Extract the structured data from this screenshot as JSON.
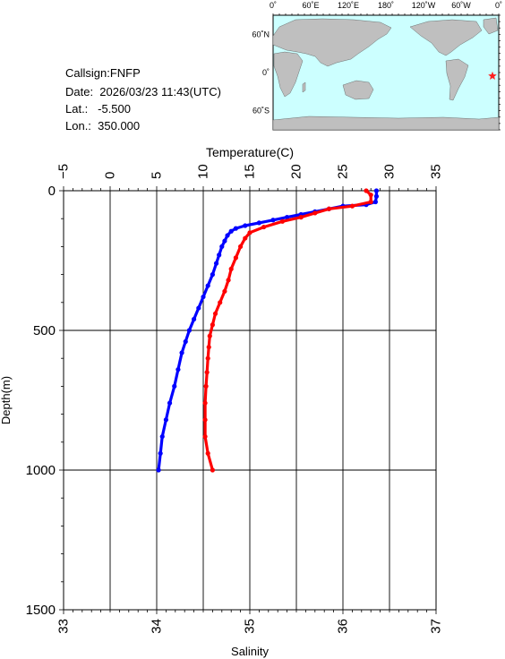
{
  "header": {
    "callsign": "Callsign:FNFP",
    "date": "Date:  2026/03/23 11:43(UTC)",
    "lat": "Lat.:   -5.500",
    "lon": "Lon.:  350.000"
  },
  "map": {
    "lon_labels": [
      "0˚",
      "60˚E",
      "120˚E",
      "180˚",
      "120˚W",
      "60˚W",
      "0˚"
    ],
    "lat_labels": [
      "60˚N",
      "0˚",
      "60˚S"
    ],
    "ocean_color": "#ccffff",
    "land_color": "#bfbfbf",
    "marker_color": "#ff2020",
    "marker_symbol": "star",
    "marker_lat": -5.5,
    "marker_lon": 350.0
  },
  "chart_data": {
    "type": "line",
    "x_top": {
      "label": "Temperature(C)",
      "range": [
        -5,
        35
      ],
      "ticks": [
        "-5",
        "0",
        "5",
        "10",
        "15",
        "20",
        "25",
        "30",
        "35"
      ]
    },
    "x_bottom": {
      "label": "Salinity",
      "range": [
        33,
        37
      ],
      "ticks": [
        "33",
        "34",
        "35",
        "36",
        "37"
      ]
    },
    "y": {
      "label": "Depth(m)",
      "range": [
        0,
        1500
      ],
      "inverted": true,
      "ticks": [
        "0",
        "500",
        "1000",
        "1500"
      ]
    },
    "grid": true,
    "series": [
      {
        "color": "#0000ff",
        "axis": "temperature",
        "points": [
          [
            28.6,
            0
          ],
          [
            28.6,
            20
          ],
          [
            28.5,
            40
          ],
          [
            27.5,
            50
          ],
          [
            25.0,
            55
          ],
          [
            23.5,
            65
          ],
          [
            22.0,
            75
          ],
          [
            20.5,
            85
          ],
          [
            19.0,
            95
          ],
          [
            17.5,
            105
          ],
          [
            16.0,
            115
          ],
          [
            14.5,
            125
          ],
          [
            13.5,
            135
          ],
          [
            13.0,
            145
          ],
          [
            12.6,
            160
          ],
          [
            12.3,
            180
          ],
          [
            12.0,
            200
          ],
          [
            11.7,
            230
          ],
          [
            11.4,
            260
          ],
          [
            11.0,
            300
          ],
          [
            10.5,
            340
          ],
          [
            10.0,
            380
          ],
          [
            9.5,
            420
          ],
          [
            9.0,
            460
          ],
          [
            8.5,
            500
          ],
          [
            8.1,
            540
          ],
          [
            7.7,
            580
          ],
          [
            7.3,
            640
          ],
          [
            6.9,
            700
          ],
          [
            6.4,
            760
          ],
          [
            6.0,
            820
          ],
          [
            5.6,
            880
          ],
          [
            5.4,
            940
          ],
          [
            5.2,
            1000
          ]
        ]
      },
      {
        "color": "#ff0000",
        "axis": "salinity",
        "points": [
          [
            36.25,
            0
          ],
          [
            36.3,
            15
          ],
          [
            36.3,
            40
          ],
          [
            36.1,
            55
          ],
          [
            35.85,
            65
          ],
          [
            35.7,
            80
          ],
          [
            35.55,
            95
          ],
          [
            35.35,
            110
          ],
          [
            35.15,
            130
          ],
          [
            35.0,
            150
          ],
          [
            34.95,
            170
          ],
          [
            34.9,
            200
          ],
          [
            34.85,
            240
          ],
          [
            34.8,
            280
          ],
          [
            34.77,
            320
          ],
          [
            34.73,
            360
          ],
          [
            34.68,
            400
          ],
          [
            34.63,
            440
          ],
          [
            34.6,
            480
          ],
          [
            34.57,
            520
          ],
          [
            34.56,
            560
          ],
          [
            34.55,
            600
          ],
          [
            34.54,
            650
          ],
          [
            34.53,
            700
          ],
          [
            34.52,
            760
          ],
          [
            34.52,
            820
          ],
          [
            34.52,
            880
          ],
          [
            34.55,
            940
          ],
          [
            34.6,
            1000
          ]
        ]
      }
    ]
  }
}
